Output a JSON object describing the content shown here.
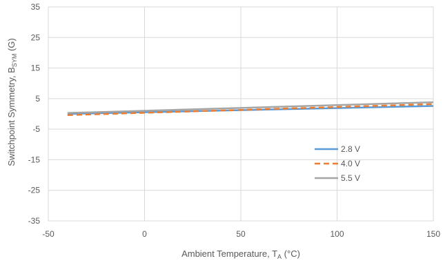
{
  "chart_data": {
    "type": "line",
    "title": "",
    "xlabel_main": "Ambient Temperature, T",
    "xlabel_sub": "A",
    "xlabel_tail": " (°C)",
    "ylabel_main": "Switchpoint Symmetry, B",
    "ylabel_sub": "SYM",
    "ylabel_tail": " (G)",
    "xlim": [
      -50,
      150
    ],
    "ylim": [
      -35,
      35
    ],
    "x_ticks": [
      -50,
      0,
      50,
      100,
      150
    ],
    "y_ticks": [
      -35,
      -25,
      -15,
      -5,
      5,
      15,
      25,
      35
    ],
    "grid": true,
    "legend_position": "bottom-right",
    "x": [
      -40,
      150
    ],
    "series": [
      {
        "name": "2.8 V",
        "values": [
          0.0,
          2.6
        ],
        "color": "#5B9BD5",
        "dash": "solid"
      },
      {
        "name": "4.0 V",
        "values": [
          -0.4,
          3.2
        ],
        "color": "#ED7D31",
        "dash": "dashed"
      },
      {
        "name": "5.5 V",
        "values": [
          0.3,
          3.8
        ],
        "color": "#A5A5A5",
        "dash": "solid"
      }
    ]
  }
}
